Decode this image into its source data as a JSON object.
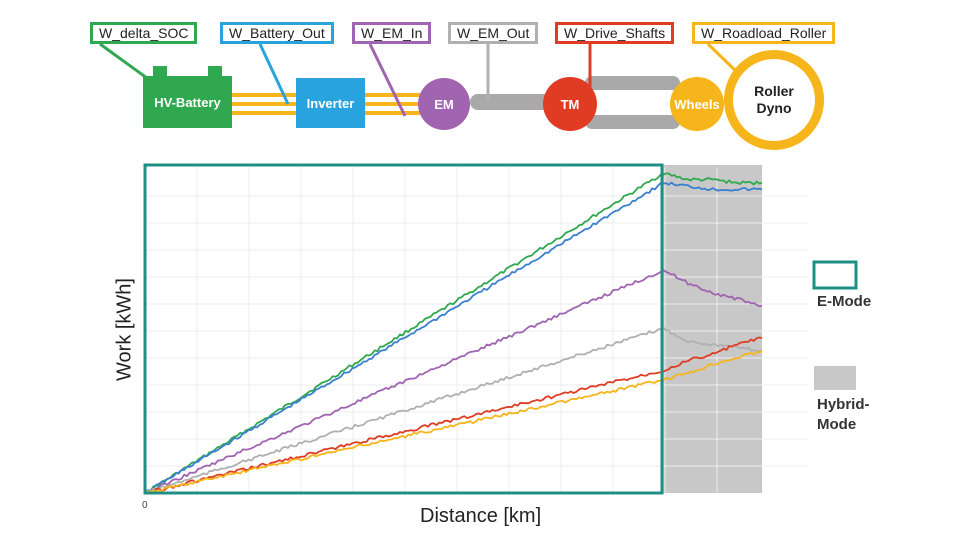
{
  "diagram": {
    "labels": {
      "delta_soc": "W_delta_SOC",
      "battery_out": "W_Battery_Out",
      "em_in": "W_EM_In",
      "em_out": "W_EM_Out",
      "drive_shafts": "W_Drive_Shafts",
      "roadload_roller": "W_Roadload_Roller"
    },
    "components": {
      "battery": "HV-Battery",
      "inverter": "Inverter",
      "em": "EM",
      "tm": "TM",
      "wheels": "Wheels",
      "dyno_line1": "Roller",
      "dyno_line2": "Dyno"
    },
    "colors": {
      "battery": "#2fa84f",
      "inverter": "#29a3dd",
      "em": "#a064b0",
      "em_out": "#b0b0b0",
      "tm": "#e03c24",
      "wheels": "#f6b51a",
      "dyno": "#f6b51a"
    }
  },
  "chart_data": {
    "type": "line",
    "xlabel": "Distance [km]",
    "ylabel": "Work [kWh]",
    "x_tick_label": "0",
    "x_range": [
      0,
      1
    ],
    "y_range": [
      0,
      1
    ],
    "e_mode_end_x": 0.84,
    "hybrid_end_x": 1.0,
    "series": [
      {
        "color": "#2fa84f",
        "x": [
          0,
          0.84,
          0.88,
          0.92,
          0.96,
          1.0
        ],
        "y": [
          0,
          0.99,
          0.97,
          0.97,
          0.96,
          0.96
        ]
      },
      {
        "color": "#3b7fd0",
        "x": [
          0,
          0.84,
          0.88,
          0.92,
          0.96,
          1.0
        ],
        "y": [
          0,
          0.96,
          0.95,
          0.94,
          0.94,
          0.94
        ]
      },
      {
        "color": "#a064b0",
        "x": [
          0,
          0.84,
          0.88,
          0.92,
          0.96,
          1.0
        ],
        "y": [
          0,
          0.69,
          0.65,
          0.62,
          0.6,
          0.58
        ]
      },
      {
        "color": "#b0b0b0",
        "x": [
          0,
          0.84,
          0.88,
          0.92,
          0.96,
          1.0
        ],
        "y": [
          0,
          0.51,
          0.47,
          0.46,
          0.45,
          0.44
        ]
      },
      {
        "color": "#e03c24",
        "x": [
          0,
          0.84,
          0.88,
          0.92,
          0.96,
          1.0
        ],
        "y": [
          0,
          0.38,
          0.41,
          0.43,
          0.46,
          0.48
        ]
      },
      {
        "color": "#f6b51a",
        "x": [
          0,
          0.84,
          0.88,
          0.92,
          0.96,
          1.0
        ],
        "y": [
          0,
          0.35,
          0.37,
          0.4,
          0.42,
          0.44
        ]
      }
    ],
    "legend": [
      {
        "label": "E-Mode",
        "color": "#1f8f86"
      },
      {
        "label_line1": "Hybrid-",
        "label_line2": "Mode",
        "color": "#c8c8c8"
      }
    ]
  }
}
